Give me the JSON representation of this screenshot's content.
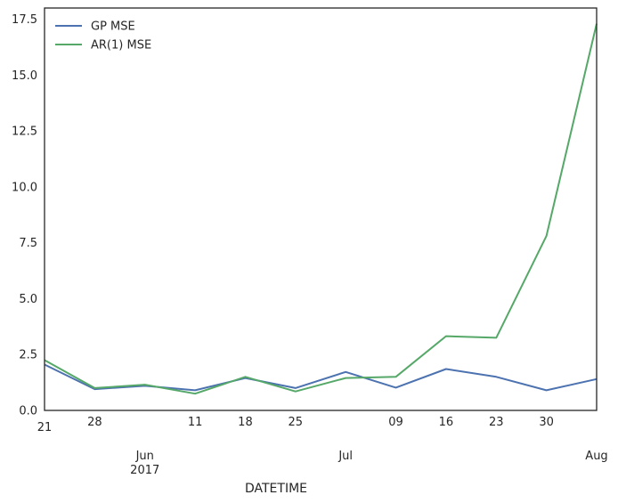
{
  "chart_data": {
    "type": "line",
    "xlabel": "DATETIME",
    "ylabel": "",
    "ylim": [
      0,
      18
    ],
    "x": [
      "2017-05-21",
      "2017-05-28",
      "2017-06-04",
      "2017-06-11",
      "2017-06-18",
      "2017-06-25",
      "2017-07-02",
      "2017-07-09",
      "2017-07-16",
      "2017-07-23",
      "2017-07-30",
      "2017-08-06"
    ],
    "series": [
      {
        "name": "GP MSE",
        "color": "#4c72b0",
        "values": [
          2.05,
          0.95,
          1.1,
          0.9,
          1.45,
          1.0,
          1.72,
          1.02,
          1.85,
          1.5,
          0.9,
          1.4
        ]
      },
      {
        "name": "AR(1) MSE",
        "color": "#55a868",
        "values": [
          2.25,
          1.0,
          1.15,
          0.75,
          1.5,
          0.85,
          1.45,
          1.5,
          3.32,
          3.25,
          7.8,
          17.3
        ]
      }
    ],
    "y_ticks": [
      "0.0",
      "2.5",
      "5.0",
      "7.5",
      "10.0",
      "12.5",
      "15.0",
      "17.5"
    ],
    "x_ticks": [
      {
        "x": "2017-05-21",
        "label": "21"
      },
      {
        "x": "2017-05-28",
        "label": "28"
      },
      {
        "x": "2017-06-11",
        "label": "11"
      },
      {
        "x": "2017-06-18",
        "label": "18"
      },
      {
        "x": "2017-06-25",
        "label": "25"
      },
      {
        "x": "2017-07-09",
        "label": "09"
      },
      {
        "x": "2017-07-16",
        "label": "16"
      },
      {
        "x": "2017-07-23",
        "label": "23"
      },
      {
        "x": "2017-07-30",
        "label": "30"
      }
    ],
    "x_major_ticks": [
      {
        "x": "2017-06-04",
        "label": "Jun",
        "sublabel": "2017"
      },
      {
        "x": "2017-07-02",
        "label": "Jul",
        "sublabel": ""
      },
      {
        "x": "2017-08-06",
        "label": "Aug",
        "sublabel": ""
      }
    ],
    "legend_position": "top-left",
    "grid": false
  }
}
